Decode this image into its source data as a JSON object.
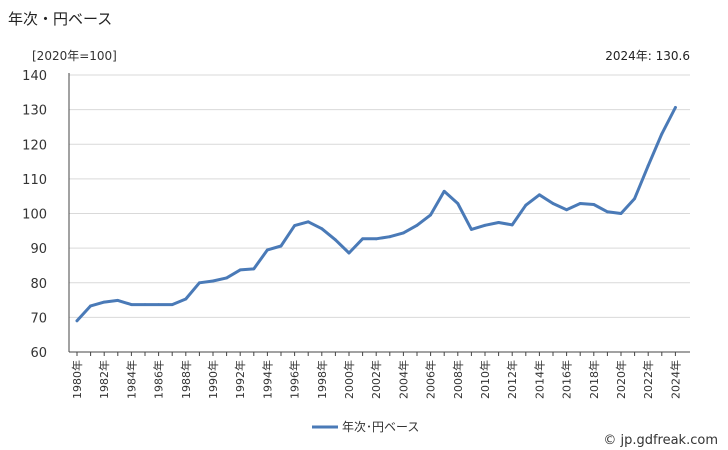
{
  "title": "年次・円ベース",
  "unit_label": "[2020年=100]",
  "annotation": "2024年: 130.6",
  "credit": "© jp.gdfreak.com",
  "colors": {
    "series": "#4a7ab7"
  },
  "chart_data": {
    "type": "line",
    "ylim": [
      60,
      140
    ],
    "yticks": [
      60,
      70,
      80,
      90,
      100,
      110,
      120,
      130,
      140
    ],
    "grid": true,
    "legend_position": "bottom-center",
    "x": [
      1980,
      1981,
      1982,
      1983,
      1984,
      1985,
      1986,
      1987,
      1988,
      1989,
      1990,
      1991,
      1992,
      1993,
      1994,
      1995,
      1996,
      1997,
      1998,
      1999,
      2000,
      2001,
      2002,
      2003,
      2004,
      2005,
      2006,
      2007,
      2008,
      2009,
      2010,
      2011,
      2012,
      2013,
      2014,
      2015,
      2016,
      2017,
      2018,
      2019,
      2020,
      2021,
      2022,
      2023,
      2024
    ],
    "xtick_labels": [
      "1980年",
      "1982年",
      "1984年",
      "1986年",
      "1988年",
      "1990年",
      "1992年",
      "1994年",
      "1996年",
      "1998年",
      "2000年",
      "2002年",
      "2004年",
      "2006年",
      "2008年",
      "2010年",
      "2012年",
      "2014年",
      "2016年",
      "2018年",
      "2020年",
      "2022年",
      "2024年"
    ],
    "series": [
      {
        "name": "年次･円ベース",
        "values": [
          69.0,
          73.3,
          74.4,
          74.9,
          73.7,
          73.7,
          73.7,
          73.7,
          75.3,
          80.0,
          80.5,
          81.4,
          83.7,
          84.0,
          89.5,
          90.6,
          96.5,
          97.6,
          95.6,
          92.4,
          88.6,
          92.7,
          92.7,
          93.3,
          94.4,
          96.6,
          99.6,
          106.4,
          102.9,
          95.4,
          96.6,
          97.4,
          96.7,
          102.4,
          105.4,
          102.9,
          101.1,
          102.9,
          102.6,
          100.5,
          100.0,
          104.3,
          113.8,
          123.0,
          130.6
        ]
      }
    ]
  }
}
